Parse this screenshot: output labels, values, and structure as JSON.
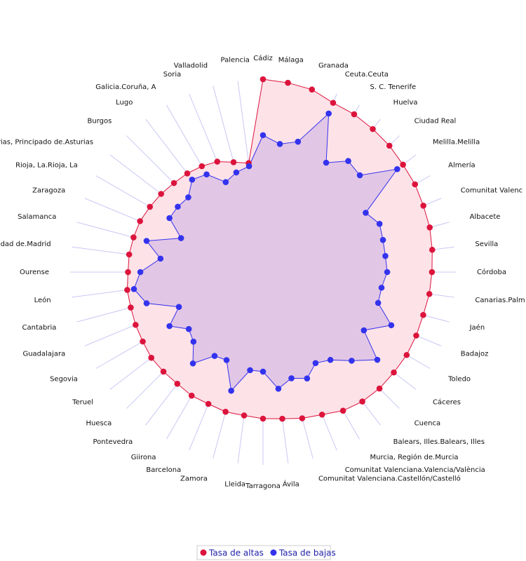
{
  "chart_data": {
    "type": "radar",
    "categories": [
      "Cádiz",
      "Málaga",
      "Granada",
      "Ceuta.Ceuta",
      "S. C. Tenerife",
      "Huelva",
      "Ciudad Real",
      "Melilla.Melilla",
      "Almería",
      "Comunitat Valenc",
      "Albacete",
      "Sevilla",
      "Córdoba",
      "Canarias.Palm",
      "Jaén",
      "Badajoz",
      "Toledo",
      "Cáceres",
      "Cuenca",
      "Balears, Illes.Balears, Illes",
      "Murcia, Región de.Murcia",
      "Comunitat Valenciana.Valencia/València",
      "Comunitat Valenciana.Castellón/Castelló",
      "Ávila",
      "Tarragona",
      "Lleida",
      "Zamora",
      "Barcelona",
      "Giirona",
      "Pontevedra",
      "Huesca",
      "Teruel",
      "Segovia",
      "Guadalajara",
      "Cantabria",
      "León",
      "Ourense",
      "dad de.Madrid",
      "Salamanca",
      "Zaragoza",
      "Rioja, La.Rioja, La",
      "rias, Principado de.Asturias",
      "Burgos",
      "Lugo",
      "Galicia.Coruña, A",
      "Soria",
      "Valladolid",
      "Palencia"
    ],
    "series": [
      {
        "name": "Tasa de altas",
        "color": "#dc143c",
        "fill": "#fde2e8",
        "values": [
          100,
          99,
          98,
          95,
          94.5,
          93.5,
          92.7,
          91.5,
          91,
          90,
          89.5,
          88.5,
          87.6,
          87,
          86,
          86,
          86,
          85.5,
          85.4,
          84.6,
          83,
          80,
          78.5,
          76.7,
          76,
          75,
          75,
          74,
          74,
          73,
          73,
          73,
          72,
          71.5,
          71,
          71,
          70,
          70,
          69.5,
          69,
          67.7,
          66.6,
          65.3,
          64.5,
          63.4,
          62,
          59,
          57
        ]
      },
      {
        "name": "Tasa de bajas",
        "color": "#3333ee",
        "fill": "rgba(130,100,220,0.22)",
        "values": [
          71,
          67,
          70,
          89,
          65.5,
          72.6,
          71,
          87.7,
          61.5,
          65.4,
          64.4,
          64,
          64.4,
          62,
          61.8,
          72,
          60.4,
          74.7,
          65,
          57.4,
          54.5,
          59.7,
          57,
          61,
          51.6,
          51.3,
          63.7,
          49.4,
          50.2,
          59.7,
          51,
          48.5,
          56,
          47.2,
          62.5,
          67.5,
          63.6,
          53.6,
          62.5,
          46,
          56,
          55.7,
          54.8,
          60.4,
          58.5,
          50.5,
          53.5,
          55.4
        ]
      }
    ],
    "rlim": [
      0,
      100
    ]
  }
}
